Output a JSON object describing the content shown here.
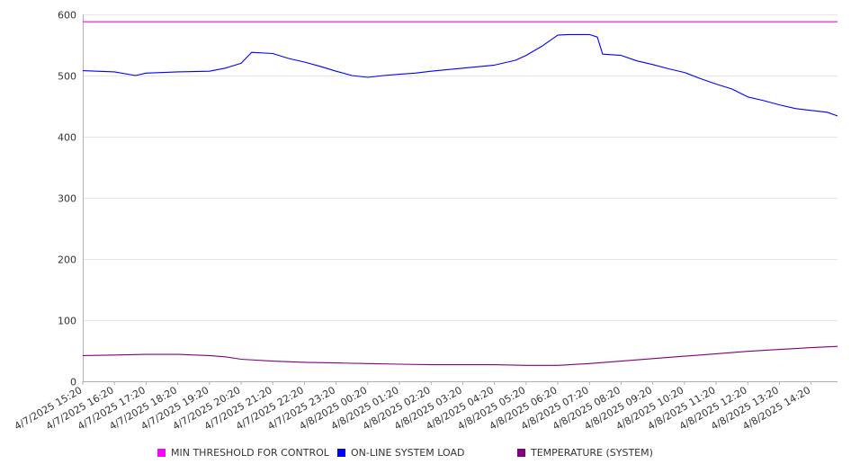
{
  "chart_data": {
    "type": "line",
    "title": "",
    "xlabel": "",
    "ylabel": "",
    "ylim": [
      0,
      600
    ],
    "y_ticks": [
      0,
      100,
      200,
      300,
      400,
      500,
      600
    ],
    "grid": "horizontal",
    "legend_position": "bottom",
    "x_range": [
      "4/7/2025 15:20",
      "4/8/2025 15:10"
    ],
    "x_ticks": [
      "4/7/2025 15:20",
      "4/7/2025 16:20",
      "4/7/2025 17:20",
      "4/7/2025 18:20",
      "4/7/2025 19:20",
      "4/7/2025 20:20",
      "4/7/2025 21:20",
      "4/7/2025 22:20",
      "4/7/2025 23:20",
      "4/8/2025 00:20",
      "4/8/2025 01:20",
      "4/8/2025 02:20",
      "4/8/2025 03:20",
      "4/8/2025 04:20",
      "4/8/2025 05:20",
      "4/8/2025 06:20",
      "4/8/2025 07:20",
      "4/8/2025 08:20",
      "4/8/2025 09:20",
      "4/8/2025 10:20",
      "4/8/2025 11:20",
      "4/8/2025 12:20",
      "4/8/2025 13:20",
      "4/8/2025 14:20"
    ],
    "series": [
      {
        "name": "MIN THRESHOLD FOR CONTROL",
        "color": "#ff00ff",
        "x": [
          "4/7/2025 15:20",
          "4/8/2025 15:10"
        ],
        "y": [
          588,
          588
        ]
      },
      {
        "name": "ON-LINE SYSTEM LOAD",
        "color": "#0000ff",
        "x": [
          "4/7/2025 15:20",
          "4/7/2025 16:20",
          "4/7/2025 17:00",
          "4/7/2025 17:20",
          "4/7/2025 18:20",
          "4/7/2025 19:20",
          "4/7/2025 19:50",
          "4/7/2025 20:20",
          "4/7/2025 20:40",
          "4/7/2025 21:20",
          "4/7/2025 21:50",
          "4/7/2025 22:20",
          "4/7/2025 22:50",
          "4/7/2025 23:20",
          "4/7/2025 23:50",
          "4/8/2025 00:20",
          "4/8/2025 00:50",
          "4/8/2025 01:20",
          "4/8/2025 01:50",
          "4/8/2025 02:20",
          "4/8/2025 03:20",
          "4/8/2025 04:20",
          "4/8/2025 05:00",
          "4/8/2025 05:20",
          "4/8/2025 05:50",
          "4/8/2025 06:20",
          "4/8/2025 06:40",
          "4/8/2025 07:00",
          "4/8/2025 07:20",
          "4/8/2025 07:35",
          "4/8/2025 07:45",
          "4/8/2025 08:20",
          "4/8/2025 08:50",
          "4/8/2025 09:20",
          "4/8/2025 09:50",
          "4/8/2025 10:20",
          "4/8/2025 10:50",
          "4/8/2025 11:20",
          "4/8/2025 11:50",
          "4/8/2025 12:20",
          "4/8/2025 12:50",
          "4/8/2025 13:20",
          "4/8/2025 13:50",
          "4/8/2025 14:20",
          "4/8/2025 14:50",
          "4/8/2025 15:10"
        ],
        "y": [
          508,
          506,
          500,
          504,
          506,
          507,
          512,
          520,
          538,
          536,
          528,
          522,
          515,
          507,
          500,
          497,
          500,
          502,
          504,
          507,
          512,
          517,
          525,
          533,
          548,
          566,
          567,
          567,
          567,
          563,
          535,
          533,
          524,
          518,
          511,
          505,
          495,
          486,
          478,
          465,
          459,
          452,
          446,
          443,
          440,
          434
        ]
      },
      {
        "name": "TEMPERATURE (SYSTEM)",
        "color": "#800080",
        "x": [
          "4/7/2025 15:20",
          "4/7/2025 16:20",
          "4/7/2025 17:20",
          "4/7/2025 18:20",
          "4/7/2025 19:20",
          "4/7/2025 19:50",
          "4/7/2025 20:20",
          "4/7/2025 21:20",
          "4/7/2025 22:20",
          "4/7/2025 23:20",
          "4/8/2025 00:20",
          "4/8/2025 01:20",
          "4/8/2025 02:20",
          "4/8/2025 03:20",
          "4/8/2025 04:20",
          "4/8/2025 05:20",
          "4/8/2025 06:20",
          "4/8/2025 07:20",
          "4/8/2025 08:20",
          "4/8/2025 09:20",
          "4/8/2025 10:20",
          "4/8/2025 11:20",
          "4/8/2025 12:20",
          "4/8/2025 13:20",
          "4/8/2025 14:20",
          "4/8/2025 15:10"
        ],
        "y": [
          42,
          43,
          44,
          44,
          42,
          40,
          36,
          33,
          31,
          30,
          29,
          28,
          27,
          27,
          27,
          26,
          26,
          29,
          33,
          37,
          41,
          45,
          49,
          52,
          55,
          57
        ]
      }
    ]
  }
}
